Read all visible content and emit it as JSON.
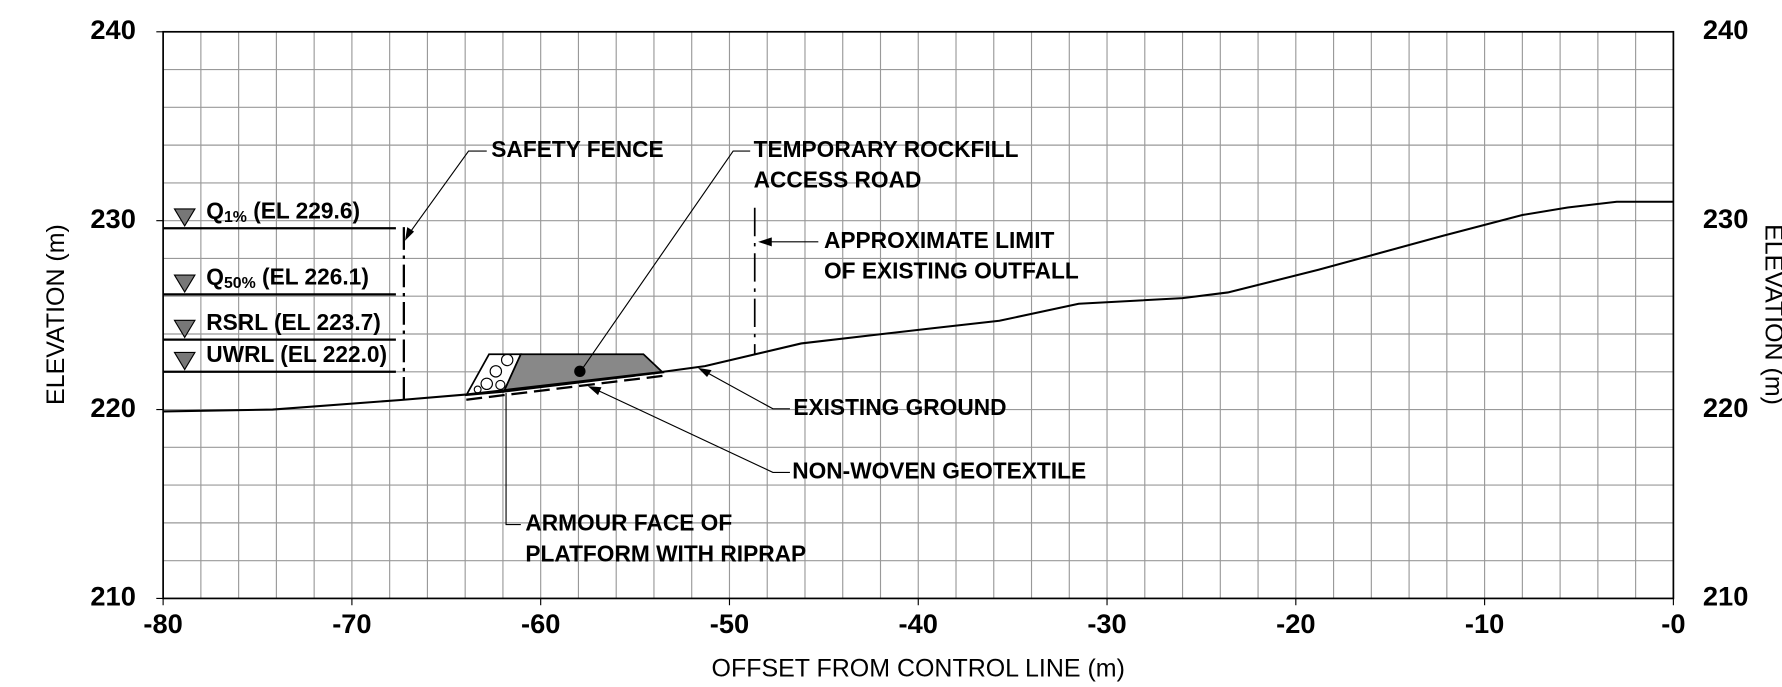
{
  "axes": {
    "xlabel": "OFFSET FROM CONTROL LINE (m)",
    "ylabel": "ELEVATION (m)",
    "xlim": [
      -80,
      0
    ],
    "ylim": [
      210,
      240
    ],
    "xticks": [
      -80,
      -70,
      -60,
      -50,
      -40,
      -30,
      -20,
      -10,
      {
        "value": 0,
        "label": "-0"
      }
    ],
    "yticks": [
      210,
      220,
      230,
      240
    ],
    "xgrid": [
      -80,
      -78,
      -76,
      -74,
      -72,
      -70,
      -68,
      -66,
      -64,
      -62,
      -60,
      -58,
      -56,
      -54,
      -52,
      -50,
      -48,
      -46,
      -44,
      -42,
      -40,
      -38,
      -36,
      -34,
      -32,
      -30,
      -28,
      -26,
      -24,
      -22,
      -20,
      -18,
      -16,
      -14,
      -12,
      -10,
      -8,
      -6,
      -4,
      -2,
      0
    ],
    "ygrid": [
      210,
      212,
      214,
      216,
      218,
      220,
      222,
      224,
      226,
      228,
      230,
      232,
      234,
      236,
      238,
      240
    ]
  },
  "ground": {
    "x": [
      -80,
      -74.2,
      -67.5,
      -63.9,
      -53.5,
      -51.3,
      -46.2,
      -39.3,
      -35.7,
      -31.5,
      -26.0,
      -23.6,
      -18.8,
      -15.5,
      -12.2,
      -8.0,
      -5.6,
      -3.0,
      0
    ],
    "y": [
      219.9,
      220.0,
      220.5,
      220.8,
      222.0,
      222.3,
      223.5,
      224.3,
      224.7,
      225.6,
      225.9,
      226.2,
      227.4,
      228.3,
      229.2,
      230.3,
      230.7,
      231.0,
      231.0
    ]
  },
  "water_levels": [
    {
      "name": "Q",
      "sub": "1%",
      "label": " (EL 229.6)",
      "elevation": 229.6
    },
    {
      "name": "Q",
      "sub": "50%",
      "label": " (EL 226.1)",
      "elevation": 226.1
    },
    {
      "name": "RSRL (EL 223.7)",
      "elevation": 223.7
    },
    {
      "name": "UWRL (EL 222.0)",
      "elevation": 222.0
    }
  ],
  "annotations": [
    {
      "lines": [
        "SAFETY FENCE"
      ]
    },
    {
      "lines": [
        "TEMPORARY ROCKFILL",
        "ACCESS ROAD"
      ]
    },
    {
      "lines": [
        "APPROXIMATE LIMIT",
        "OF EXISTING OUTFALL"
      ]
    },
    {
      "lines": [
        "EXISTING GROUND"
      ]
    },
    {
      "lines": [
        "NON-WOVEN GEOTEXTILE"
      ]
    },
    {
      "lines": [
        "ARMOUR FACE OF",
        "PLATFORM WITH RIPRAP"
      ]
    }
  ]
}
